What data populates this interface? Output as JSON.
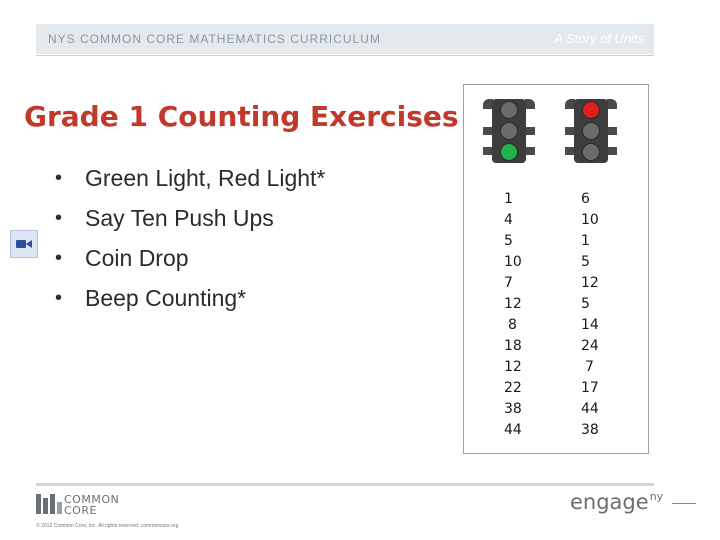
{
  "header": {
    "curriculum": "NYS COMMON CORE MATHEMATICS CURRICULUM",
    "tagline": "A Story of Units"
  },
  "slide": {
    "title": "Grade 1 Counting Exercises",
    "bullet_symbol": "•",
    "bullets": [
      "Green Light, Red Light*",
      "Say Ten Push Ups",
      "Coin Drop",
      "Beep Counting*"
    ]
  },
  "traffic_panel": {
    "lights": [
      {
        "active": "bottom",
        "active_color": "#22b14c"
      },
      {
        "active": "top",
        "active_color": "#e01e1e"
      }
    ],
    "columns": [
      [
        "1",
        "4",
        "5",
        "10",
        "7",
        "12",
        "8",
        "18",
        "12",
        "22",
        "38",
        "44"
      ],
      [
        "6",
        "10",
        "1",
        "5",
        "12",
        "5",
        "14",
        "24",
        "7",
        "17",
        "44",
        "38"
      ]
    ]
  },
  "footer": {
    "logo_line1": "COMMON",
    "logo_line2": "CORE",
    "copyright": "© 2012 Common Core, Inc. All rights reserved. commoncore.org",
    "engage_text": "engage",
    "engage_sup": "ny"
  },
  "icons": {
    "video": "video-camera-icon",
    "bulb_off_color": "#6b6b6b"
  }
}
